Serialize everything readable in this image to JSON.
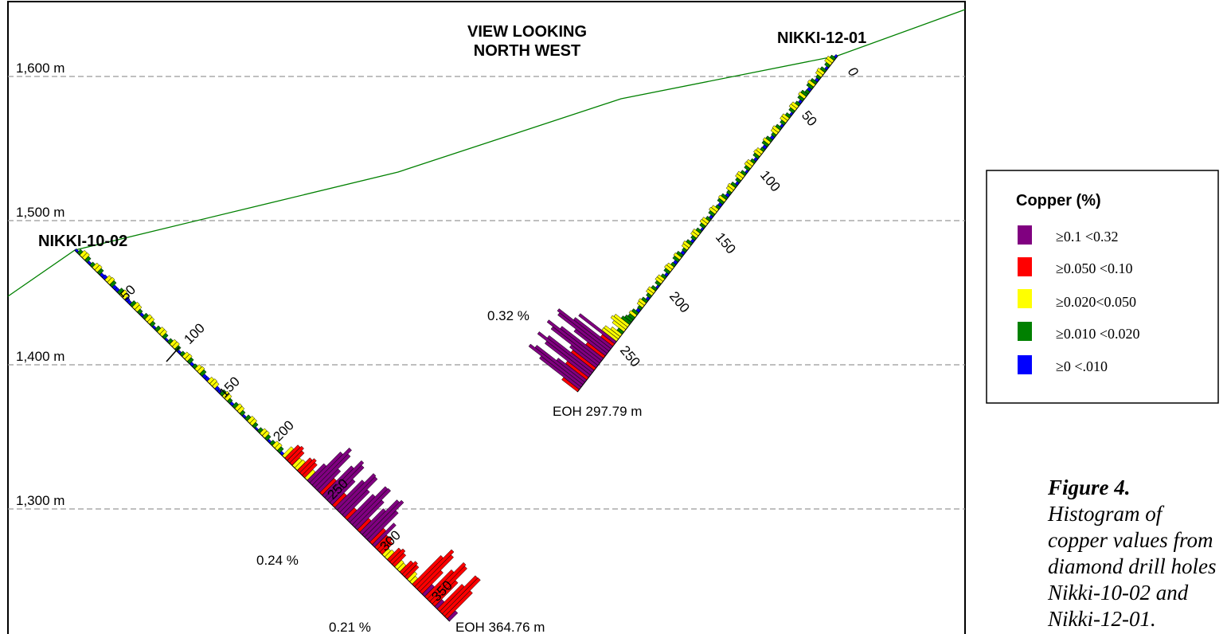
{
  "section": {
    "view_title_line1": "VIEW LOOKING",
    "view_title_line2": "NORTH WEST",
    "elevation_labels": [
      "1,600 m",
      "1,500 m",
      "1,400 m",
      "1,300 m"
    ],
    "holes": [
      {
        "name": "NIKKI-10-02",
        "depth_labels": [
          "50",
          "100",
          "150",
          "200",
          "250",
          "300",
          "350"
        ],
        "annotations": [
          "0.24 %",
          "0.21 %"
        ],
        "eoh": "EOH 364.76 m"
      },
      {
        "name": "NIKKI-12-01",
        "depth_labels": [
          "0",
          "50",
          "100",
          "150",
          "200",
          "250"
        ],
        "annotations": [
          "0.32 %"
        ],
        "eoh": "EOH 297.79 m"
      }
    ]
  },
  "legend": {
    "title": "Copper (%)",
    "items": [
      {
        "label": "≥0.1 <0.32",
        "color": "#800080"
      },
      {
        "label": "≥0.050 <0.10",
        "color": "#ff0000"
      },
      {
        "label": "≥0.020<0.050",
        "color": "#ffff00"
      },
      {
        "label": "≥0.010 <0.020",
        "color": "#008000"
      },
      {
        "label": "≥0 <.010",
        "color": "#0000ff"
      }
    ]
  },
  "caption": {
    "bold": "Figure 4.",
    "text": " Histogram of copper values from diamond drill holes Nikki-10-02 and Nikki-12-01."
  },
  "colors": {
    "topography": "#008000",
    "grid": "#999999"
  }
}
